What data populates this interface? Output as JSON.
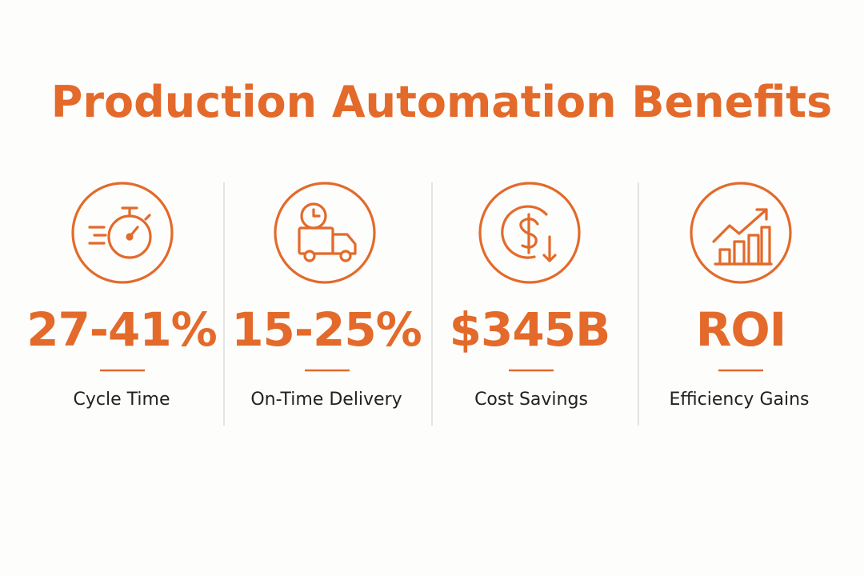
{
  "header": {
    "title": "Production Automation Benefits"
  },
  "stats": [
    {
      "value": "27-41%",
      "label": "Cycle Time"
    },
    {
      "value": "15-25%",
      "label": "On-Time Delivery"
    },
    {
      "value": "$345B",
      "label": "Cost Savings"
    },
    {
      "value": "ROI",
      "label": "Efficiency Gains"
    }
  ]
}
